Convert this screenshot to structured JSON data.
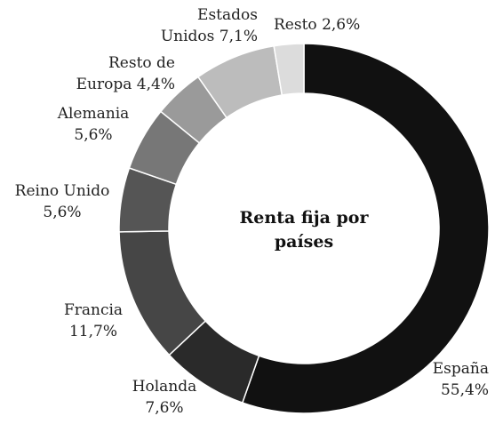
{
  "chart_data": {
    "type": "donut",
    "title": "Renta fija por países",
    "categories": [
      "España",
      "Holanda",
      "Francia",
      "Reino Unido",
      "Alemania",
      "Resto de Europa",
      "Estados Unidos",
      "Resto"
    ],
    "values": [
      55.4,
      7.6,
      11.7,
      5.6,
      5.6,
      4.4,
      7.1,
      2.6
    ],
    "value_labels": [
      "55,4%",
      "7,6%",
      "11,7%",
      "5,6%",
      "5,6%",
      "4,4%",
      "7,1%",
      "2,6%"
    ],
    "colors": [
      "#111111",
      "#2a2a2a",
      "#464646",
      "#555555",
      "#777777",
      "#9a9a9a",
      "#bcbcbc",
      "#dcdcdc"
    ]
  }
}
